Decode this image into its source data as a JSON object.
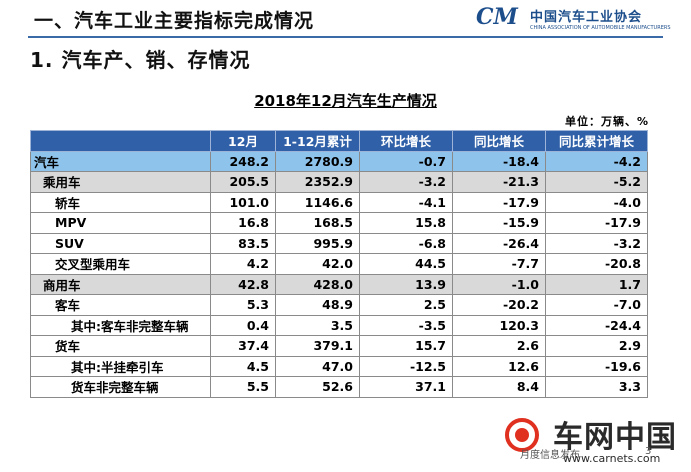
{
  "header": {
    "title": "一、汽车工业主要指标完成情况",
    "logo_mark": "CM",
    "logo_org_cn": "中国汽车工业协会",
    "logo_org_en": "CHINA ASSOCIATION OF AUTOMOBILE MANUFACTURERS"
  },
  "section": {
    "title": "1. 汽车产、销、存情况"
  },
  "table": {
    "title": "2018年12月汽车生产情况",
    "unit": "单位：万辆、%",
    "columns": [
      "",
      "12月",
      "1-12月累计",
      "环比增长",
      "同比增长",
      "同比累计增长"
    ],
    "rows": [
      {
        "label": "汽车",
        "values": [
          "248.2",
          "2780.9",
          "-0.7",
          "-18.4",
          "-4.2"
        ]
      },
      {
        "label": "乘用车",
        "values": [
          "205.5",
          "2352.9",
          "-3.2",
          "-21.3",
          "-5.2"
        ]
      },
      {
        "label": "轿车",
        "values": [
          "101.0",
          "1146.6",
          "-4.1",
          "-17.9",
          "-4.0"
        ]
      },
      {
        "label": "MPV",
        "values": [
          "16.8",
          "168.5",
          "15.8",
          "-15.9",
          "-17.9"
        ]
      },
      {
        "label": "SUV",
        "values": [
          "83.5",
          "995.9",
          "-6.8",
          "-26.4",
          "-3.2"
        ]
      },
      {
        "label": "交叉型乘用车",
        "values": [
          "4.2",
          "42.0",
          "44.5",
          "-7.7",
          "-20.8"
        ]
      },
      {
        "label": "商用车",
        "values": [
          "42.8",
          "428.0",
          "13.9",
          "-1.0",
          "1.7"
        ]
      },
      {
        "label": "客车",
        "values": [
          "5.3",
          "48.9",
          "2.5",
          "-20.2",
          "-7.0"
        ]
      },
      {
        "label": "其中:客车非完整车辆",
        "values": [
          "0.4",
          "3.5",
          "-3.5",
          "120.3",
          "-24.4"
        ]
      },
      {
        "label": "货车",
        "values": [
          "37.4",
          "379.1",
          "15.7",
          "2.6",
          "2.9"
        ]
      },
      {
        "label": "其中:半挂牵引车",
        "values": [
          "4.5",
          "47.0",
          "-12.5",
          "12.6",
          "-19.6"
        ]
      },
      {
        "label": "货车非完整车辆",
        "values": [
          "5.5",
          "52.6",
          "37.1",
          "8.4",
          "3.3"
        ]
      }
    ]
  },
  "watermark": {
    "text": "车网中国",
    "url": "www.carnets.com"
  },
  "footer": {
    "text": "月度信息发布",
    "page": "3"
  }
}
